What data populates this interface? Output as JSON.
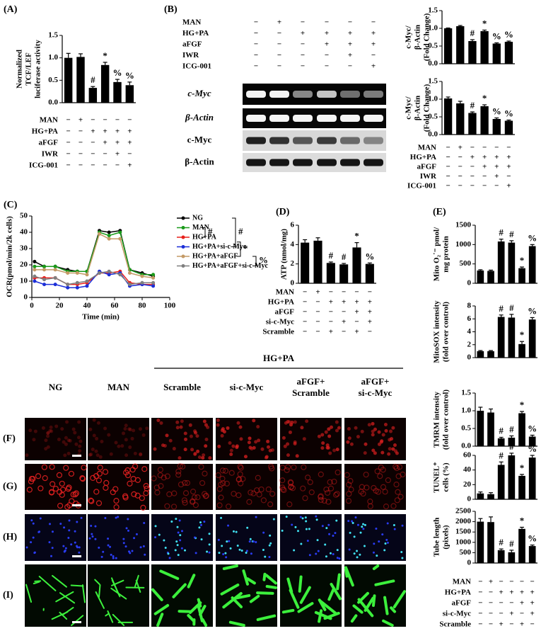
{
  "chart_data": [
    {
      "type": "bar",
      "panel": "(A)",
      "ylabel": [
        "Normalized",
        "TCF/LEF",
        "luciferase activity"
      ],
      "ylim": [
        0,
        1.5
      ],
      "yticks": [
        {
          "value": 0,
          "label": "0.0"
        },
        {
          "value": 0.5,
          "label": "0.5"
        },
        {
          "value": 1,
          "label": "1.0"
        },
        {
          "value": 1.5,
          "label": "1.5"
        }
      ],
      "values": [
        1.0,
        1.02,
        0.33,
        0.84,
        0.46,
        0.39
      ],
      "errors": [
        0.1,
        0.07,
        0.03,
        0.06,
        0.06,
        0.07
      ],
      "annotations": [
        null,
        null,
        "#",
        "*",
        "%",
        "%"
      ],
      "color": "#000000",
      "conditions": [
        {
          "label": "MAN",
          "signs": [
            "−",
            "+",
            "−",
            "−",
            "−",
            "−"
          ]
        },
        {
          "label": "HG+PA",
          "signs": [
            "−",
            "−",
            "+",
            "+",
            "+",
            "+"
          ]
        },
        {
          "label": "aFGF",
          "signs": [
            "−",
            "−",
            "−",
            "+",
            "+",
            "+"
          ]
        },
        {
          "label": "IWR",
          "signs": [
            "−",
            "−",
            "−",
            "−",
            "+",
            "−"
          ]
        },
        {
          "label": "ICG-001",
          "signs": [
            "−",
            "−",
            "−",
            "−",
            "−",
            "+"
          ]
        }
      ]
    },
    {
      "type": "bar",
      "ylabel": [
        "c-Myc/",
        "β-Actin",
        "(Fold Change)"
      ],
      "ylim": [
        0,
        1.5
      ],
      "yticks": [
        {
          "value": 0,
          "label": "0.0"
        },
        {
          "value": 0.5,
          "label": "0.5"
        },
        {
          "value": 1,
          "label": "1.0"
        },
        {
          "value": 1.5,
          "label": "1.5"
        }
      ],
      "values": [
        1.0,
        1.06,
        0.64,
        0.92,
        0.57,
        0.62
      ],
      "errors": [
        0.01,
        0.02,
        0.04,
        0.03,
        0.02,
        0.02
      ],
      "annotations": [
        null,
        null,
        "#",
        "*",
        "%",
        "%"
      ],
      "color": "#000000"
    },
    {
      "type": "bar",
      "ylabel": [
        "c-Myc/",
        "β-Actin",
        "(Fold Change)"
      ],
      "ylim": [
        0,
        1.5
      ],
      "yticks": [
        {
          "value": 0,
          "label": "0.0"
        },
        {
          "value": 0.5,
          "label": "0.5"
        },
        {
          "value": 1,
          "label": "1.0"
        },
        {
          "value": 1.5,
          "label": "1.5"
        }
      ],
      "values": [
        1.02,
        0.88,
        0.61,
        0.8,
        0.44,
        0.39
      ],
      "errors": [
        0.04,
        0.06,
        0.03,
        0.04,
        0.03,
        0.02
      ],
      "annotations": [
        null,
        null,
        "#",
        "*",
        "%",
        "%"
      ],
      "color": "#000000",
      "conditions": [
        {
          "label": "MAN",
          "signs": [
            "−",
            "+",
            "−",
            "−",
            "−",
            "−"
          ]
        },
        {
          "label": "HG+PA",
          "signs": [
            "−",
            "−",
            "+",
            "+",
            "+",
            "+"
          ]
        },
        {
          "label": "aFGF",
          "signs": [
            "−",
            "−",
            "−",
            "+",
            "+",
            "+"
          ]
        },
        {
          "label": "IWR",
          "signs": [
            "−",
            "−",
            "−",
            "−",
            "+",
            "−"
          ]
        },
        {
          "label": "ICG-001",
          "signs": [
            "−",
            "−",
            "−",
            "−",
            "−",
            "+"
          ]
        }
      ]
    },
    {
      "type": "line",
      "panel": "(C)",
      "xlabel": "Time (min)",
      "ylabel": "OCR(pmol/min/2k cells)",
      "xlim": [
        0,
        100
      ],
      "xticks": [
        0,
        20,
        40,
        60,
        80,
        100
      ],
      "ylim": [
        0,
        50
      ],
      "yticks": [
        0,
        10,
        20,
        30,
        40,
        50
      ],
      "x": [
        2,
        9,
        17,
        26,
        33,
        40,
        49,
        56,
        64,
        71,
        80,
        88
      ],
      "series": [
        {
          "name": "NG",
          "color": "#000000",
          "values": [
            22,
            19,
            19,
            17,
            16,
            16,
            41,
            40,
            41,
            17,
            15,
            13
          ]
        },
        {
          "name": "MAN",
          "color": "#1a9a1a",
          "values": [
            19,
            19,
            19,
            16,
            16,
            16,
            40,
            38,
            40,
            17,
            14,
            14
          ]
        },
        {
          "name": "HG+PA",
          "color": "#e8201c",
          "values": [
            12,
            12,
            12,
            8,
            8,
            9,
            15,
            15,
            16,
            9,
            8,
            8
          ]
        },
        {
          "name": "HG+PA+si-c-Myc",
          "color": "#1c2fd8",
          "values": [
            10,
            8,
            8,
            6,
            6,
            7,
            16,
            14,
            15,
            7,
            8,
            7
          ]
        },
        {
          "name": "HG+PA+aFGF",
          "color": "#c49a66",
          "values": [
            17,
            17,
            17,
            15,
            15,
            14,
            39,
            36,
            36,
            15,
            13,
            12
          ]
        },
        {
          "name": "HG+PA+aFGF+si-c-Myc",
          "color": "#7f7f7f",
          "values": [
            13,
            11,
            12,
            8,
            9,
            10,
            15,
            16,
            14,
            8,
            9,
            9
          ]
        }
      ],
      "legend_annotations": [
        "#",
        "#",
        "*",
        "%"
      ]
    },
    {
      "type": "bar",
      "panel": "(D)",
      "ylabel": [
        "ATP (nmol/mg)"
      ],
      "ylim": [
        0,
        6
      ],
      "yticks": [
        0,
        2,
        4,
        6
      ],
      "values": [
        4.2,
        4.4,
        2.1,
        1.95,
        3.7,
        2.0
      ],
      "errors": [
        0.3,
        0.3,
        0.1,
        0.1,
        0.5,
        0.1
      ],
      "annotations": [
        null,
        null,
        "#",
        "#",
        "*",
        "%"
      ],
      "color": "#000000",
      "conditions": [
        {
          "label": "MAN",
          "signs": [
            "−",
            "+",
            "−",
            "−",
            "−",
            "−"
          ]
        },
        {
          "label": "HG+PA",
          "signs": [
            "−",
            "−",
            "+",
            "+",
            "+",
            "+"
          ]
        },
        {
          "label": "aFGF",
          "signs": [
            "−",
            "−",
            "−",
            "−",
            "+",
            "+"
          ]
        },
        {
          "label": "si-c-Myc",
          "signs": [
            "−",
            "−",
            "−",
            "+",
            "−",
            "+"
          ]
        },
        {
          "label": "Scramble",
          "signs": [
            "−",
            "−",
            "+",
            "−",
            "+",
            "−"
          ]
        }
      ]
    },
    {
      "type": "bar",
      "panel": "(E)",
      "ylabel": [
        "Mito O₂˙⁻ pmol/",
        "mg protein"
      ],
      "ylim": [
        0,
        1500
      ],
      "yticks": [
        0,
        500,
        1000,
        1500
      ],
      "values": [
        330,
        320,
        1080,
        1050,
        390,
        960
      ],
      "errors": [
        20,
        20,
        60,
        50,
        30,
        40
      ],
      "annotations": [
        null,
        null,
        "#",
        "#",
        "*",
        "%"
      ],
      "color": "#000000"
    },
    {
      "type": "bar",
      "ylabel": [
        "MitoSOX intensity",
        "(fold over control)"
      ],
      "ylim": [
        0,
        8
      ],
      "yticks": [
        0,
        2,
        4,
        6,
        8
      ],
      "values": [
        1,
        1,
        6.3,
        6.2,
        2.1,
        5.9
      ],
      "errors": [
        0.1,
        0.1,
        0.3,
        0.5,
        0.4,
        0.3
      ],
      "annotations": [
        null,
        null,
        "#",
        "#",
        "*",
        "%"
      ],
      "color": "#000000"
    },
    {
      "type": "bar",
      "ylabel": [
        "TMRM intensity",
        "(fold over control)"
      ],
      "ylim": [
        0,
        1.5
      ],
      "yticks": [
        {
          "value": 0,
          "label": "0.0"
        },
        {
          "value": 0.5,
          "label": "0.5"
        },
        {
          "value": 1,
          "label": "1.0"
        },
        {
          "value": 1.5,
          "label": "1.5"
        }
      ],
      "values": [
        1.0,
        0.95,
        0.22,
        0.24,
        0.93,
        0.27
      ],
      "errors": [
        0.1,
        0.1,
        0.03,
        0.05,
        0.05,
        0.04
      ],
      "annotations": [
        null,
        null,
        "#",
        "#",
        "*",
        "%"
      ],
      "color": "#000000"
    },
    {
      "type": "bar",
      "ylabel": [
        "TUNEL⁺",
        "cells (%)"
      ],
      "ylim": [
        0,
        60
      ],
      "yticks": [
        0,
        20,
        40,
        60
      ],
      "values": [
        8,
        7,
        47,
        60,
        32,
        57
      ],
      "errors": [
        2,
        2,
        4,
        3,
        2,
        3
      ],
      "annotations": [
        null,
        null,
        "#",
        "#",
        "*",
        "%"
      ],
      "color": "#000000"
    },
    {
      "type": "bar",
      "ylabel": [
        "Tube length",
        "(pixels)"
      ],
      "ylim": [
        0,
        2500
      ],
      "yticks": [
        0,
        500,
        1000,
        1500,
        2000,
        2500
      ],
      "values": [
        2000,
        1980,
        620,
        520,
        1650,
        820
      ],
      "errors": [
        150,
        250,
        60,
        100,
        80,
        50
      ],
      "annotations": [
        null,
        null,
        "#",
        "#",
        "*",
        "%"
      ],
      "color": "#000000",
      "conditions": [
        {
          "label": "MAN",
          "signs": [
            "−",
            "+",
            "−",
            "−",
            "−",
            "−"
          ]
        },
        {
          "label": "HG+PA",
          "signs": [
            "−",
            "−",
            "+",
            "+",
            "+",
            "+"
          ]
        },
        {
          "label": "aFGF",
          "signs": [
            "−",
            "−",
            "−",
            "−",
            "+",
            "+"
          ]
        },
        {
          "label": "si-c-Myc",
          "signs": [
            "−",
            "−",
            "−",
            "+",
            "−",
            "+"
          ]
        },
        {
          "label": "Scramble",
          "signs": [
            "−",
            "−",
            "+",
            "−",
            "+",
            "−"
          ]
        }
      ]
    }
  ],
  "blot": {
    "panel": "(B)",
    "conditions": [
      {
        "label": "MAN",
        "signs": [
          "−",
          "+",
          "−",
          "−",
          "−",
          "−"
        ]
      },
      {
        "label": "HG+PA",
        "signs": [
          "−",
          "−",
          "+",
          "+",
          "+",
          "+"
        ]
      },
      {
        "label": "aFGF",
        "signs": [
          "−",
          "−",
          "−",
          "+",
          "+",
          "+"
        ]
      },
      {
        "label": "IWR",
        "signs": [
          "−",
          "−",
          "−",
          "−",
          "+",
          "−"
        ]
      },
      {
        "label": "ICG-001",
        "signs": [
          "−",
          "−",
          "−",
          "−",
          "−",
          "+"
        ]
      }
    ],
    "rows": [
      "c-Myc",
      "β-Actin",
      "c-Myc",
      "β-Actin"
    ]
  },
  "images": {
    "group": "HG+PA",
    "columns": [
      [
        "NG"
      ],
      [
        "MAN"
      ],
      [
        "Scramble"
      ],
      [
        "si-c-Myc"
      ],
      [
        "aFGF+",
        "Scramble"
      ],
      [
        "aFGF+",
        "si-c-Myc"
      ]
    ],
    "rows": [
      "(F)",
      "(G)",
      "(H)",
      "(I)"
    ]
  }
}
